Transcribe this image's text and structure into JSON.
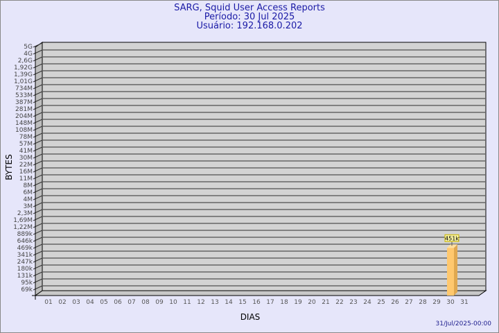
{
  "title_lines": [
    "SARG, Squid User Access Reports",
    "Período: 30 Jul 2025",
    "Usuário: 192.168.0.202"
  ],
  "footer": "31/Jul/2025-00:00",
  "chart_data": {
    "type": "bar",
    "xlabel": "DIAS",
    "ylabel": "BYTES",
    "y_scale": "log",
    "y_tick_labels": [
      "5G",
      "4G",
      "2,6G",
      "1,92G",
      "1,39G",
      "1,01G",
      "734M",
      "533M",
      "387M",
      "281M",
      "204M",
      "148M",
      "108M",
      "78M",
      "57M",
      "41M",
      "30M",
      "22M",
      "16M",
      "11M",
      "8M",
      "6M",
      "4M",
      "3M",
      "2,3M",
      "1,69M",
      "1,22M",
      "889k",
      "646k",
      "469k",
      "341k",
      "247k",
      "180k",
      "131k",
      "95k",
      "69k"
    ],
    "categories": [
      "01",
      "02",
      "03",
      "04",
      "05",
      "06",
      "07",
      "08",
      "09",
      "10",
      "11",
      "12",
      "13",
      "14",
      "15",
      "16",
      "17",
      "18",
      "19",
      "20",
      "21",
      "22",
      "23",
      "24",
      "25",
      "26",
      "27",
      "28",
      "29",
      "30",
      "31"
    ],
    "values": [
      null,
      null,
      null,
      null,
      null,
      null,
      null,
      null,
      null,
      null,
      null,
      null,
      null,
      null,
      null,
      null,
      null,
      null,
      null,
      null,
      null,
      null,
      null,
      null,
      null,
      null,
      null,
      null,
      null,
      451000,
      null
    ],
    "data_labels": {
      "30": "451k"
    },
    "bar_color": "#ffc86e",
    "grid": true,
    "legend": "none"
  }
}
